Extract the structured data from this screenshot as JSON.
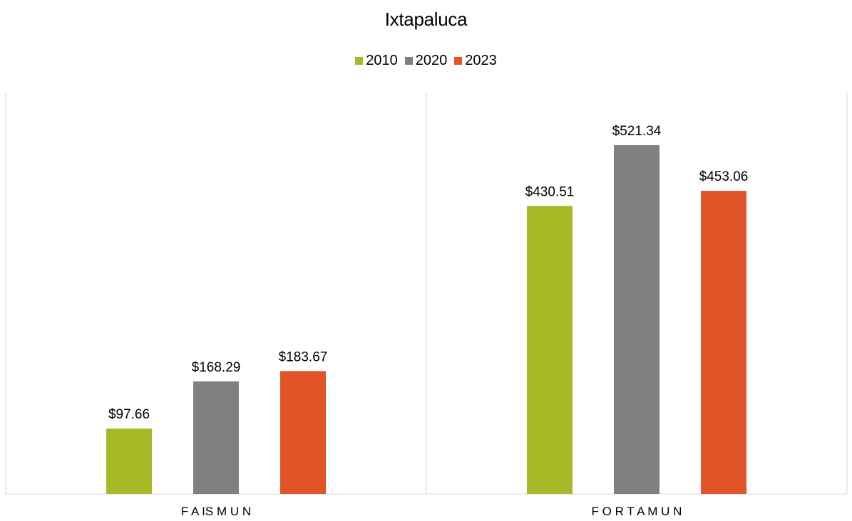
{
  "chart_data": {
    "type": "bar",
    "title": "Ixtapaluca",
    "categories": [
      "FAISMUN",
      "FORTAMUN"
    ],
    "category_labels": [
      "F A IS M U N",
      "F O R T A M U N"
    ],
    "series": [
      {
        "name": "2010",
        "color": "#A8B927",
        "values": [
          97.66,
          430.51
        ],
        "labels": [
          "$97.66",
          "$430.51"
        ]
      },
      {
        "name": "2020",
        "color": "#808080",
        "values": [
          168.29,
          521.34
        ],
        "labels": [
          "$168.29",
          "$521.34"
        ]
      },
      {
        "name": "2023",
        "color": "#E05427",
        "values": [
          183.67,
          453.06
        ],
        "labels": [
          "$183.67",
          "$453.06"
        ]
      }
    ],
    "ylim": [
      0,
      600
    ],
    "legend_position": "top",
    "grid": false
  }
}
